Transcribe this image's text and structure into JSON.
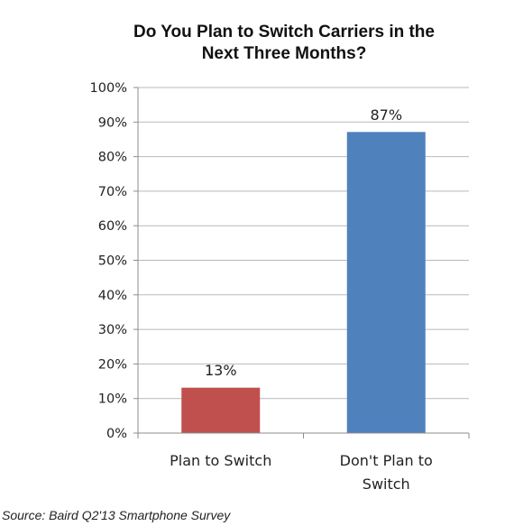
{
  "chart_data": {
    "type": "bar",
    "title_lines": [
      "Do You Plan to Switch Carriers in the",
      "Next Three Months?"
    ],
    "categories": [
      [
        "Plan to Switch"
      ],
      [
        "Don't Plan to",
        "Switch"
      ]
    ],
    "values": [
      13,
      87
    ],
    "data_labels": [
      "13%",
      "87%"
    ],
    "bar_colors": [
      "#c0504d",
      "#4f81bd"
    ],
    "ylim": [
      0,
      100
    ],
    "yticks": [
      0,
      10,
      20,
      30,
      40,
      50,
      60,
      70,
      80,
      90,
      100
    ],
    "ytick_labels": [
      "0%",
      "10%",
      "20%",
      "30%",
      "40%",
      "50%",
      "60%",
      "70%",
      "80%",
      "90%",
      "100%"
    ],
    "grid": true,
    "legend": "none"
  },
  "source_note": "Source: Baird Q2'13 Smartphone Survey"
}
